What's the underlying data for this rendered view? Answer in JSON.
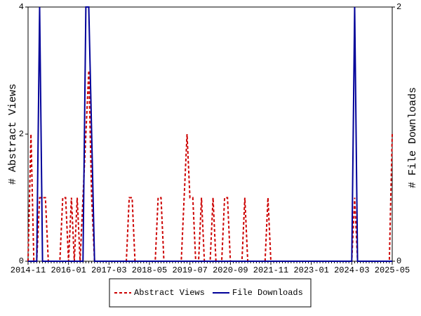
{
  "chart_data": {
    "type": "line",
    "categories": [
      "2014-11",
      null,
      null,
      null,
      null,
      null,
      null,
      null,
      null,
      null,
      null,
      null,
      null,
      null,
      "2016-01",
      null,
      null,
      null,
      null,
      null,
      null,
      null,
      null,
      null,
      null,
      null,
      null,
      null,
      "2017-03",
      null,
      null,
      null,
      null,
      null,
      null,
      null,
      null,
      null,
      null,
      null,
      null,
      null,
      "2018-05",
      null,
      null,
      null,
      null,
      null,
      null,
      null,
      null,
      null,
      null,
      null,
      null,
      null,
      "2019-07",
      null,
      null,
      null,
      null,
      null,
      null,
      null,
      null,
      null,
      null,
      null,
      null,
      null,
      "2020-09",
      null,
      null,
      null,
      null,
      null,
      null,
      null,
      null,
      null,
      null,
      null,
      null,
      null,
      "2021-11",
      null,
      null,
      null,
      null,
      null,
      null,
      null,
      null,
      null,
      null,
      null,
      null,
      null,
      "2023-01",
      null,
      null,
      null,
      null,
      null,
      null,
      null,
      null,
      null,
      null,
      null,
      null,
      null,
      "2024-03",
      null,
      null,
      null,
      null,
      null,
      null,
      null,
      null,
      null,
      null,
      null,
      null,
      null,
      "2025-05"
    ],
    "ylabel": "# Abstract Views",
    "y2label": "# File Downloads",
    "ylim": [
      0,
      4
    ],
    "yticks": [
      0,
      2,
      4
    ],
    "y2lim": [
      0,
      2
    ],
    "y2ticks": [
      0,
      2
    ],
    "series": [
      {
        "name": "Abstract Views",
        "color": "#cc0000",
        "dash": true,
        "values": [
          0,
          2,
          0,
          0,
          1,
          1,
          1,
          0,
          0,
          0,
          0,
          0,
          1,
          1,
          0,
          1,
          0,
          1,
          0,
          1,
          2,
          3,
          1,
          0,
          0,
          0,
          0,
          0,
          0,
          0,
          0,
          0,
          0,
          0,
          0,
          1,
          1,
          0,
          0,
          0,
          0,
          0,
          0,
          0,
          0,
          1,
          1,
          0,
          0,
          0,
          0,
          0,
          0,
          0,
          1,
          2,
          1,
          1,
          0,
          0,
          1,
          0,
          0,
          0,
          1,
          0,
          0,
          0,
          1,
          1,
          0,
          0,
          0,
          0,
          0,
          1,
          0,
          0,
          0,
          0,
          0,
          0,
          0,
          1,
          0,
          0,
          0,
          0,
          0,
          0,
          0,
          0,
          0,
          0,
          0,
          0,
          0,
          0,
          0,
          0,
          0,
          0,
          0,
          0,
          0,
          0,
          0,
          0,
          0,
          0,
          0,
          0,
          0,
          1,
          0,
          0,
          0,
          0,
          0,
          0,
          0,
          0,
          0,
          0,
          0,
          0,
          2
        ]
      },
      {
        "name": "File Downloads",
        "color": "#000099",
        "dash": false,
        "axis": "y2",
        "values": [
          0,
          0,
          0,
          0,
          2,
          0,
          0,
          0,
          0,
          0,
          0,
          0,
          0,
          0,
          0,
          0,
          0,
          0,
          0,
          0,
          2,
          2,
          1,
          0,
          0,
          0,
          0,
          0,
          0,
          0,
          0,
          0,
          0,
          0,
          0,
          0,
          0,
          0,
          0,
          0,
          0,
          0,
          0,
          0,
          0,
          0,
          0,
          0,
          0,
          0,
          0,
          0,
          0,
          0,
          0,
          0,
          0,
          0,
          0,
          0,
          0,
          0,
          0,
          0,
          0,
          0,
          0,
          0,
          0,
          0,
          0,
          0,
          0,
          0,
          0,
          0,
          0,
          0,
          0,
          0,
          0,
          0,
          0,
          0,
          0,
          0,
          0,
          0,
          0,
          0,
          0,
          0,
          0,
          0,
          0,
          0,
          0,
          0,
          0,
          0,
          0,
          0,
          0,
          0,
          0,
          0,
          0,
          0,
          0,
          0,
          0,
          0,
          0,
          2,
          0,
          0,
          0,
          0,
          0,
          0,
          0,
          0,
          0,
          0,
          0,
          0,
          0
        ]
      }
    ]
  }
}
